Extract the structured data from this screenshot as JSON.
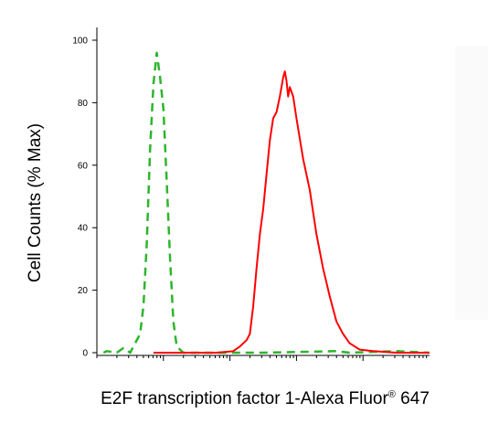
{
  "chart_data": {
    "type": "line",
    "xlabel_main": "E2F transcription factor 1-Alexa Fluor",
    "xlabel_sup": "®",
    "xlabel_tail": " 647",
    "ylabel": "Cell Counts (% Max)",
    "x_scale": "log",
    "x_tick_labels": [],
    "ylim": [
      0,
      100
    ],
    "y_ticks": [
      0,
      20,
      40,
      60,
      80,
      100
    ],
    "grid": false,
    "series": [
      {
        "color": "#2db52d",
        "dash": "dashed",
        "points": [
          [
            0.02,
            0
          ],
          [
            0.03,
            0.5
          ],
          [
            0.06,
            0
          ],
          [
            0.08,
            1.5
          ],
          [
            0.1,
            0
          ],
          [
            0.13,
            6
          ],
          [
            0.14,
            15
          ],
          [
            0.15,
            35
          ],
          [
            0.16,
            65
          ],
          [
            0.17,
            86
          ],
          [
            0.18,
            96
          ],
          [
            0.19,
            88
          ],
          [
            0.2,
            78
          ],
          [
            0.21,
            55
          ],
          [
            0.22,
            30
          ],
          [
            0.23,
            10
          ],
          [
            0.24,
            2
          ],
          [
            0.26,
            0
          ],
          [
            0.5,
            0
          ],
          [
            0.72,
            0.5
          ],
          [
            0.76,
            0
          ],
          [
            0.9,
            0.5
          ],
          [
            1.0,
            0
          ]
        ]
      },
      {
        "color": "#ff0000",
        "dash": "solid",
        "points": [
          [
            0.17,
            0
          ],
          [
            0.3,
            0
          ],
          [
            0.36,
            0
          ],
          [
            0.41,
            0.5
          ],
          [
            0.43,
            2
          ],
          [
            0.45,
            4
          ],
          [
            0.46,
            6
          ],
          [
            0.47,
            15
          ],
          [
            0.48,
            27
          ],
          [
            0.49,
            38
          ],
          [
            0.5,
            46
          ],
          [
            0.51,
            57
          ],
          [
            0.52,
            68
          ],
          [
            0.53,
            75
          ],
          [
            0.54,
            77
          ],
          [
            0.55,
            82
          ],
          [
            0.56,
            88
          ],
          [
            0.565,
            90
          ],
          [
            0.57,
            87
          ],
          [
            0.575,
            82
          ],
          [
            0.58,
            85
          ],
          [
            0.59,
            82
          ],
          [
            0.6,
            75
          ],
          [
            0.62,
            62
          ],
          [
            0.64,
            52
          ],
          [
            0.65,
            45
          ],
          [
            0.66,
            38
          ],
          [
            0.68,
            27
          ],
          [
            0.7,
            18
          ],
          [
            0.72,
            10
          ],
          [
            0.74,
            6
          ],
          [
            0.76,
            3
          ],
          [
            0.79,
            1
          ],
          [
            0.83,
            0.5
          ],
          [
            0.9,
            0
          ],
          [
            1.0,
            0
          ]
        ]
      }
    ]
  }
}
